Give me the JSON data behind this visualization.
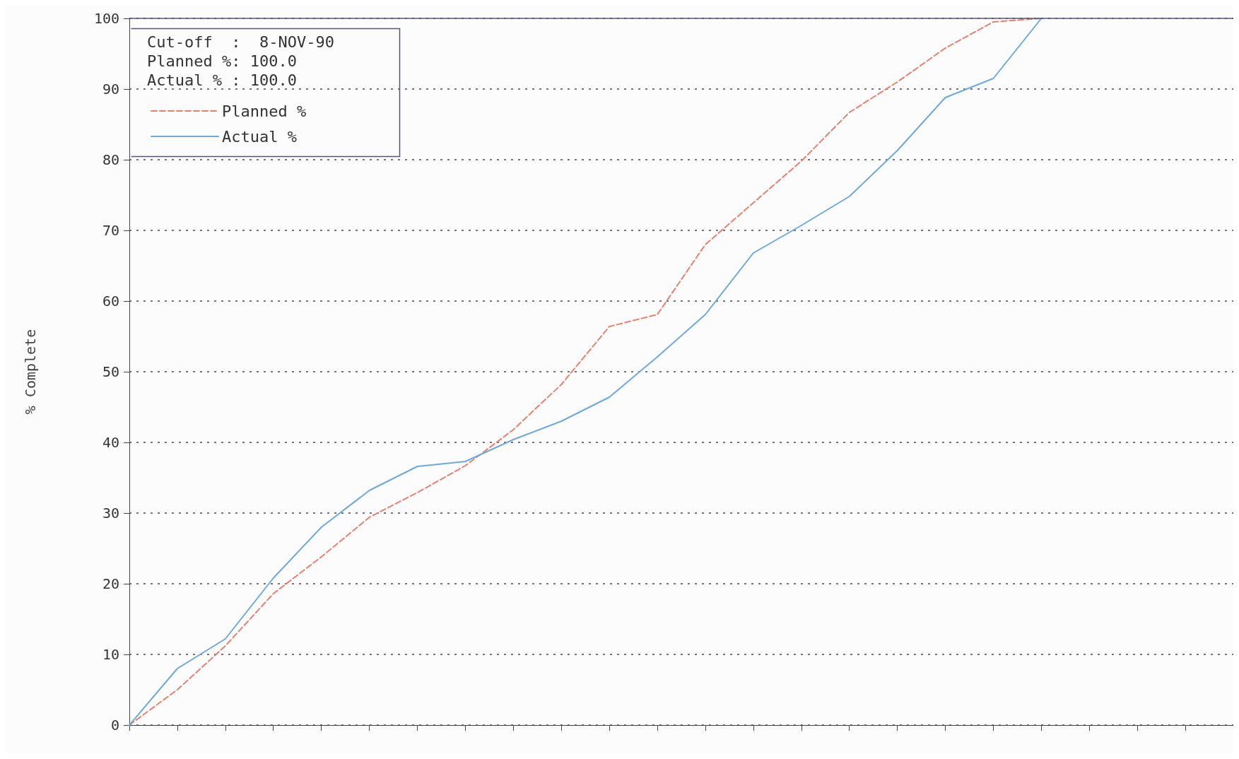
{
  "chart_data": {
    "type": "line",
    "ylabel": "% Complete",
    "annotations": [
      "Cut-off  :  8-NOV-90",
      "Planned %: 100.0",
      "Actual % : 100.0"
    ],
    "categories": [
      null,
      null,
      null,
      null,
      null,
      null,
      null,
      null,
      null,
      null,
      null,
      null,
      null,
      null,
      null,
      null,
      null,
      null,
      null,
      null,
      null,
      null,
      null,
      null
    ],
    "series": [
      {
        "name": "Planned %",
        "color": "#e8806e",
        "line_style": "dashed",
        "values": [
          0,
          5,
          11.2,
          18.6,
          23.8,
          29.4,
          32.9,
          36.7,
          41.8,
          48.2,
          56.4,
          58.1,
          68,
          73.9,
          79.8,
          86.7,
          91,
          95.8,
          99.5,
          100,
          null,
          null,
          null,
          null
        ]
      },
      {
        "name": "Actual %",
        "color": "#6fa8dc",
        "line_style": "solid",
        "values": [
          0,
          8,
          12.2,
          20.8,
          28,
          33.2,
          36.6,
          37.3,
          40.4,
          43,
          46.4,
          52.1,
          58.1,
          66.8,
          70.7,
          74.8,
          81.3,
          88.8,
          91.5,
          100,
          null,
          null,
          null,
          null
        ]
      }
    ],
    "ylim": [
      0,
      100
    ],
    "yticks": [
      0,
      10,
      20,
      30,
      40,
      50,
      60,
      70,
      80,
      90,
      100
    ],
    "grid": "y",
    "legend": "top left",
    "tick_labels": "y",
    "marker": "none"
  }
}
